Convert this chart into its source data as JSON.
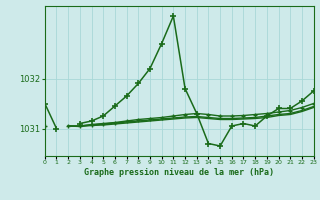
{
  "title": "Graphe pression niveau de la mer (hPa)",
  "bg_color": "#ceeaea",
  "grid_color": "#a8d8d8",
  "line_color": "#1a6b1a",
  "hours": [
    0,
    1,
    2,
    3,
    4,
    5,
    6,
    7,
    8,
    9,
    10,
    11,
    12,
    13,
    14,
    15,
    16,
    17,
    18,
    19,
    20,
    21,
    22,
    23
  ],
  "series1": [
    1031.5,
    1031.0,
    null,
    1031.1,
    1031.15,
    1031.25,
    1031.45,
    1031.65,
    1031.9,
    1032.2,
    1032.7,
    1033.25,
    1031.8,
    1031.3,
    1030.7,
    1030.65,
    1031.05,
    1031.1,
    1031.05,
    1031.25,
    1031.4,
    1031.4,
    1031.55,
    1031.75
  ],
  "series2": [
    1031.05,
    null,
    1031.05,
    1031.05,
    1031.08,
    1031.1,
    1031.12,
    1031.15,
    1031.18,
    1031.2,
    1031.22,
    1031.25,
    1031.28,
    1031.3,
    1031.28,
    1031.25,
    1031.25,
    1031.26,
    1031.28,
    1031.3,
    1031.33,
    1031.36,
    1031.42,
    1031.5
  ],
  "series3": [
    1031.05,
    null,
    1031.05,
    1031.05,
    1031.07,
    1031.09,
    1031.11,
    1031.13,
    1031.15,
    1031.17,
    1031.19,
    1031.21,
    1031.23,
    1031.24,
    1031.22,
    1031.2,
    1031.2,
    1031.21,
    1031.22,
    1031.25,
    1031.28,
    1031.3,
    1031.36,
    1031.44
  ],
  "series4": [
    1031.05,
    null,
    1031.05,
    1031.04,
    1031.06,
    1031.07,
    1031.09,
    1031.11,
    1031.13,
    1031.15,
    1031.17,
    1031.19,
    1031.21,
    1031.22,
    1031.2,
    1031.18,
    1031.18,
    1031.19,
    1031.2,
    1031.22,
    1031.26,
    1031.28,
    1031.34,
    1031.42
  ],
  "ylim": [
    1030.45,
    1033.45
  ],
  "yticks": [
    1031,
    1032
  ],
  "xlim": [
    0,
    23
  ]
}
